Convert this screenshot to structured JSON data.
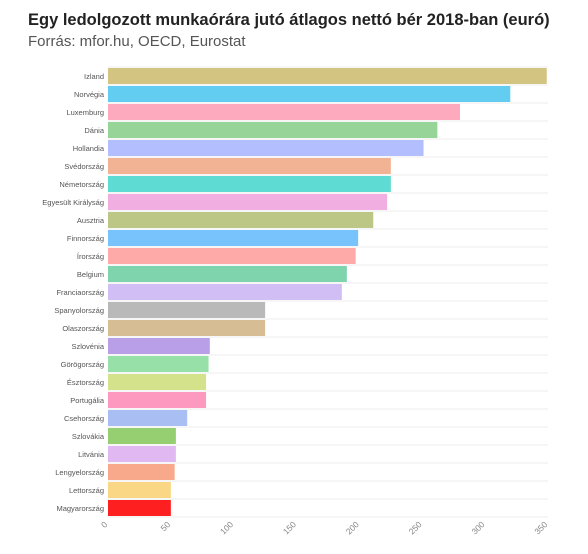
{
  "header": {
    "title": "Egy ledolgozott munkaórára jutó átlagos nettó bér 2018-ban (euró)",
    "subtitle": "Forrás: mfor.hu, OECD, Eurostat"
  },
  "chart_data": {
    "type": "bar",
    "orientation": "horizontal",
    "title": "Egy ledolgozott munkaórára jutó átlagos nettó bér 2018-ban (euró)",
    "subtitle": "Forrás: mfor.hu, OECD, Eurostat",
    "xlabel": "",
    "ylabel": "",
    "xlim": [
      0,
      350
    ],
    "xticks": [
      0,
      50,
      100,
      150,
      200,
      250,
      300,
      350
    ],
    "grid": true,
    "categories": [
      "Izland",
      "Norvégia",
      "Luxemburg",
      "Dánia",
      "Hollandia",
      "Svédország",
      "Németország",
      "Egyesült Királyság",
      "Ausztria",
      "Finnország",
      "Írország",
      "Belgium",
      "Franciaország",
      "Spanyolország",
      "Olaszország",
      "Szlovénia",
      "Görögország",
      "Észtország",
      "Portugália",
      "Csehország",
      "Szlovákia",
      "Litvánia",
      "Lengyelország",
      "Lettország",
      "Magyarország"
    ],
    "values": [
      349,
      320,
      280,
      262,
      251,
      225,
      225,
      222,
      211,
      199,
      197,
      190,
      186,
      125,
      125,
      81,
      80,
      78,
      78,
      63,
      54,
      54,
      53,
      50,
      50
    ],
    "colors": [
      "#d4c481",
      "#62cdf0",
      "#fdaabe",
      "#97d497",
      "#b3beff",
      "#f2b394",
      "#5edbd2",
      "#f1aee0",
      "#bcc785",
      "#78c3fb",
      "#fdaaa9",
      "#7fd3ad",
      "#d0bef5",
      "#b9b9b9",
      "#d7bd93",
      "#b99fe8",
      "#97e1a9",
      "#d4e38b",
      "#fd99be",
      "#a9bff3",
      "#96cf72",
      "#e2b8f3",
      "#f8a88b",
      "#fad784",
      "#fe2020"
    ]
  }
}
